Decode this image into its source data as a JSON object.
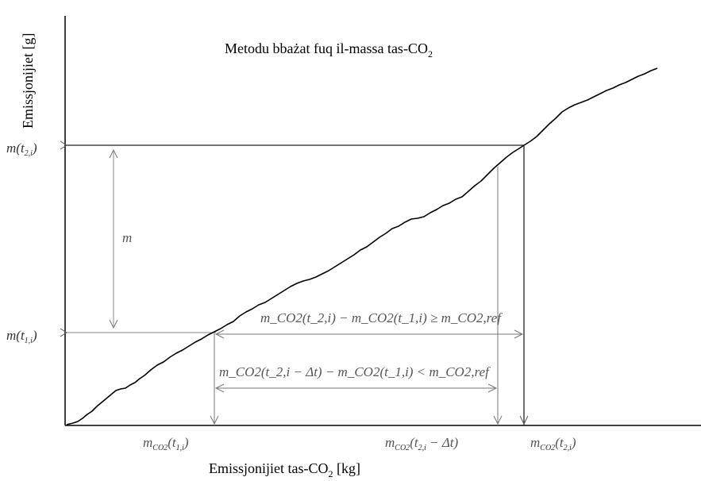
{
  "title": {
    "prefix": "Metodu bbażat fuq il-massa tas-CO",
    "subscript": "2"
  },
  "y_axis_label": "Emissjonijiet [g]",
  "x_axis_label": {
    "prefix": "Emissjonijiet tas-CO",
    "subscript": "2",
    "suffix": " [kg]"
  },
  "y_ticks": {
    "upper": {
      "base": "m(t",
      "sub": "2,i",
      "close": ")"
    },
    "lower": {
      "base": "m(t",
      "sub": "1,i",
      "close": ")"
    }
  },
  "m_label": "m",
  "x_ticks": {
    "t1": {
      "base": "m",
      "sub": "CO2",
      "arg": "(t",
      "argsub": "1,i",
      "close": ")"
    },
    "t2dt": {
      "base": "m",
      "sub": "CO2",
      "arg": "(t",
      "argsub": "2,i",
      "tail": " − Δt)"
    },
    "t2": {
      "base": "m",
      "sub": "CO2",
      "arg": "(t",
      "argsub": "2,i",
      "close": ")"
    }
  },
  "equations": {
    "upper": "m_CO2(t_2,i) − m_CO2(t_1,i) ≥ m_CO2,ref",
    "lower": "m_CO2(t_2,i − Δt) − m_CO2(t_1,i) < m_CO2,ref"
  },
  "colors": {
    "curve": "#000000",
    "axis": "#000000",
    "helper": "#444444",
    "arrow": "#666666"
  }
}
